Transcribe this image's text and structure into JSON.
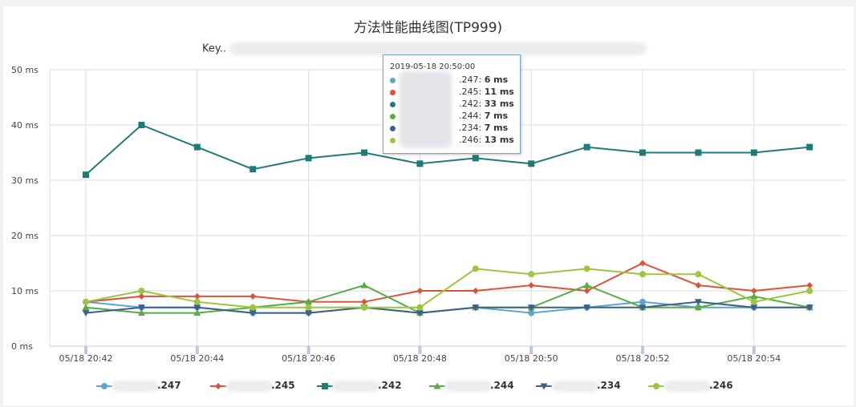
{
  "chart_data": {
    "type": "line",
    "title": "方法性能曲线图(TP999)",
    "key_label": "Key..",
    "xlabel": "",
    "ylabel": "",
    "ylim": [
      0,
      50
    ],
    "y_ticks": [
      "0 ms",
      "10 ms",
      "20 ms",
      "30 ms",
      "40 ms",
      "50 ms"
    ],
    "y_tick_values": [
      0,
      10,
      20,
      30,
      40,
      50
    ],
    "x": [
      "20:42",
      "20:43",
      "20:44",
      "20:45",
      "20:46",
      "20:47",
      "20:48",
      "20:49",
      "20:50",
      "20:51",
      "20:52",
      "20:53",
      "20:54",
      "20:55"
    ],
    "x_tick_labels": [
      "05/18 20:42",
      "05/18 20:44",
      "05/18 20:46",
      "05/18 20:48",
      "05/18 20:50",
      "05/18 20:52",
      "05/18 20:54"
    ],
    "grid": true,
    "legend_position": "bottom",
    "series": [
      {
        "name": ".247",
        "color": "#5ba7d0",
        "marker": "circle",
        "values": [
          8,
          7,
          7,
          6,
          6,
          7,
          6,
          7,
          6,
          7,
          8,
          7,
          7,
          7
        ]
      },
      {
        "name": ".245",
        "color": "#d9543b",
        "marker": "diamond",
        "values": [
          8,
          9,
          9,
          9,
          8,
          8,
          10,
          10,
          11,
          10,
          15,
          11,
          10,
          11
        ]
      },
      {
        "name": ".242",
        "color": "#1f7a7a",
        "marker": "square",
        "values": [
          31,
          40,
          36,
          32,
          34,
          35,
          33,
          34,
          33,
          36,
          35,
          35,
          35,
          36
        ]
      },
      {
        "name": ".244",
        "color": "#5aab46",
        "marker": "triangle",
        "values": [
          7,
          6,
          6,
          7,
          8,
          11,
          6,
          7,
          7,
          11,
          7,
          7,
          9,
          7
        ]
      },
      {
        "name": ".234",
        "color": "#3e5f8a",
        "marker": "triangle-down",
        "values": [
          6,
          7,
          7,
          6,
          6,
          7,
          6,
          7,
          7,
          7,
          7,
          8,
          7,
          7
        ]
      },
      {
        "name": ".246",
        "color": "#9cc63f",
        "marker": "circle",
        "values": [
          8,
          10,
          8,
          7,
          7,
          7,
          7,
          14,
          13,
          14,
          13,
          13,
          8,
          10
        ]
      }
    ]
  },
  "tooltip": {
    "time": "2019-05-18 20:50:00",
    "rows": [
      {
        "ip": ".247",
        "value": "6 ms",
        "color": "#5ba7d0"
      },
      {
        "ip": ".245",
        "value": "11 ms",
        "color": "#d9543b"
      },
      {
        "ip": ".242",
        "value": "33 ms",
        "color": "#1f7a7a"
      },
      {
        "ip": ".244",
        "value": "7 ms",
        "color": "#5aab46"
      },
      {
        "ip": ".234",
        "value": "7 ms",
        "color": "#3e5f8a"
      },
      {
        "ip": ".246",
        "value": "13 ms",
        "color": "#9cc63f"
      }
    ]
  }
}
